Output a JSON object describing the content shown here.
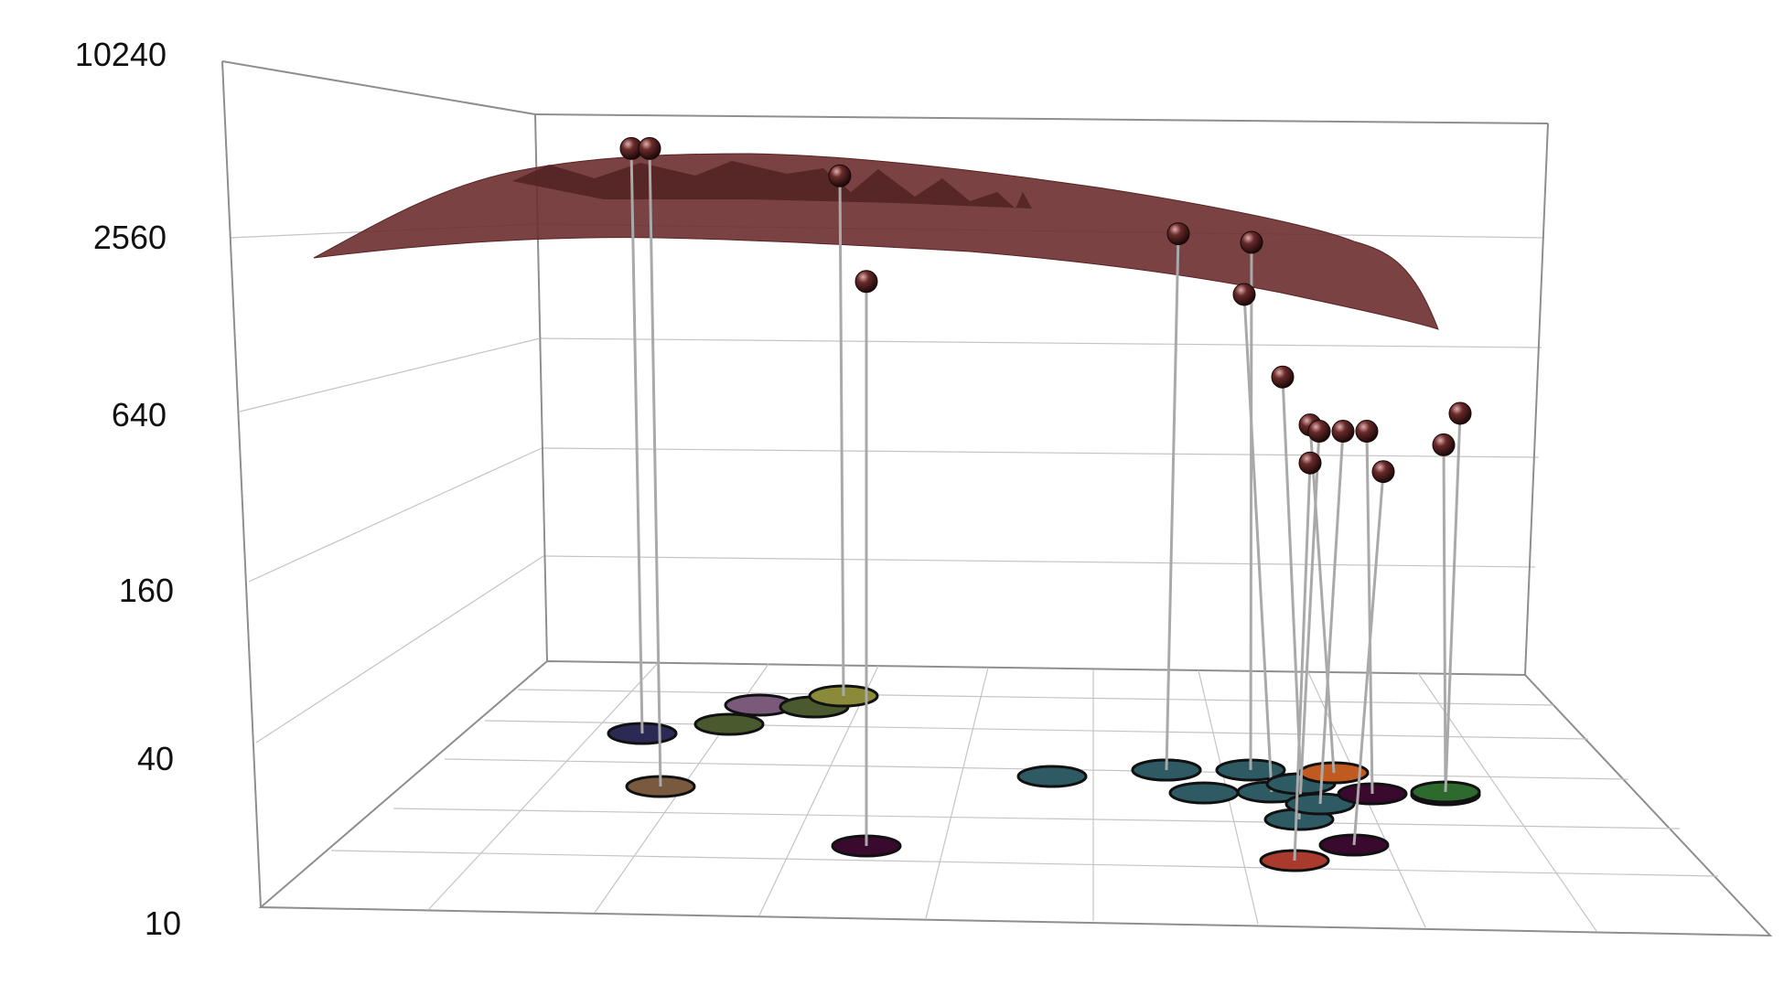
{
  "chart_data": {
    "type": "scatter",
    "zscale": "log",
    "z_ticks": [
      "10240",
      "2560",
      "640",
      "160",
      "40",
      "10"
    ],
    "surface_color": "#6b2e2e",
    "marker_color": "#4a1e1e",
    "stem_color": "#a9a9a9",
    "points": [
      {
        "z": 5900,
        "base_color": "#2a2a55"
      },
      {
        "z": 5900,
        "base_color": "#7a5a3e"
      },
      {
        "z": 4700,
        "base_color": "#8a8a3a"
      },
      {
        "z": 1950,
        "base_color": "#3a0a2e"
      },
      {
        "z": 2900,
        "base_color": "#2e5a64"
      },
      {
        "z": 2700,
        "base_color": "#2e5a64"
      },
      {
        "z": 1750,
        "base_color": "#2e5a64"
      },
      {
        "z": 880,
        "base_color": "#2e5a64"
      },
      {
        "z": 590,
        "base_color": "#c05a1e"
      },
      {
        "z": 560,
        "base_color": "#2e5a64"
      },
      {
        "z": 560,
        "base_color": "#2e5a64"
      },
      {
        "z": 560,
        "base_color": "#3a0a2e"
      },
      {
        "z": 430,
        "base_color": "#a83a2e"
      },
      {
        "z": 400,
        "base_color": "#3a0a2e"
      },
      {
        "z": 500,
        "base_color": "#3a0a2e"
      },
      {
        "z": 650,
        "base_color": "#2e6a2e"
      }
    ],
    "floor_markers": [
      {
        "color": "#7a5a7a"
      },
      {
        "color": "#4a5a2e"
      },
      {
        "color": "#4a5a2e"
      },
      {
        "color": "#2e5a64"
      },
      {
        "color": "#2e5a64"
      },
      {
        "color": "#2e5a64"
      }
    ]
  }
}
